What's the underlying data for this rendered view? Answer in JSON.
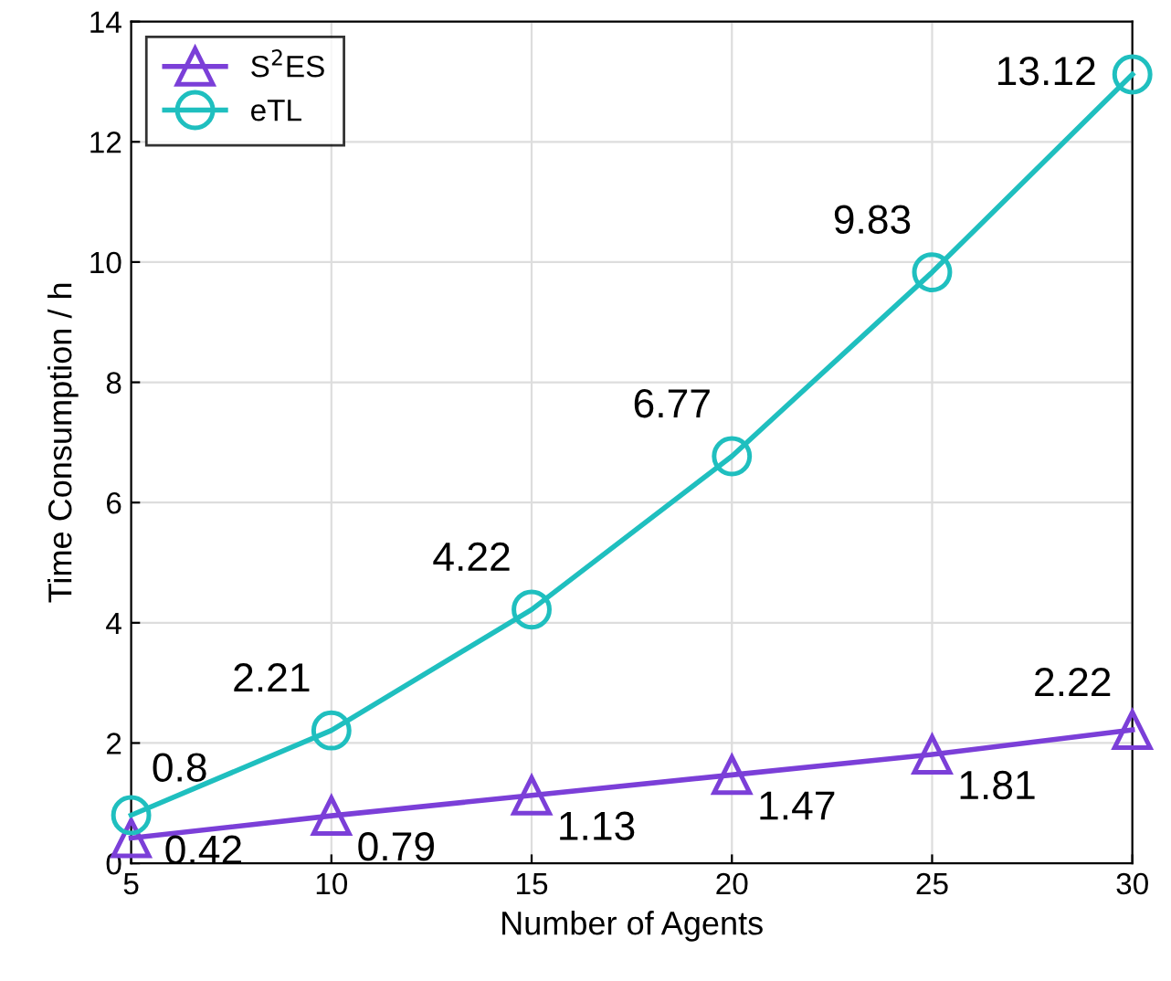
{
  "chart_data": {
    "type": "line",
    "xlabel": "Number of Agents",
    "ylabel": "Time Consumption / h",
    "x": [
      5,
      10,
      15,
      20,
      25,
      30
    ],
    "series": [
      {
        "name": "S$^{2}$ES",
        "color": "#7b3fd8",
        "marker": "triangle",
        "values": [
          0.42,
          0.79,
          1.13,
          1.47,
          1.81,
          2.22
        ]
      },
      {
        "name": "eTL",
        "color": "#1fbfbf",
        "marker": "circle",
        "values": [
          0.8,
          2.21,
          4.22,
          6.77,
          9.83,
          13.12
        ]
      }
    ],
    "xlim": [
      5,
      30
    ],
    "xticks": [
      5,
      10,
      15,
      20,
      25,
      30
    ],
    "ylim": [
      0,
      14
    ],
    "yticks": [
      0,
      2,
      4,
      6,
      8,
      10,
      12,
      14
    ],
    "grid": true,
    "legend": "top left",
    "data_labels": true,
    "line_style": "solid"
  }
}
